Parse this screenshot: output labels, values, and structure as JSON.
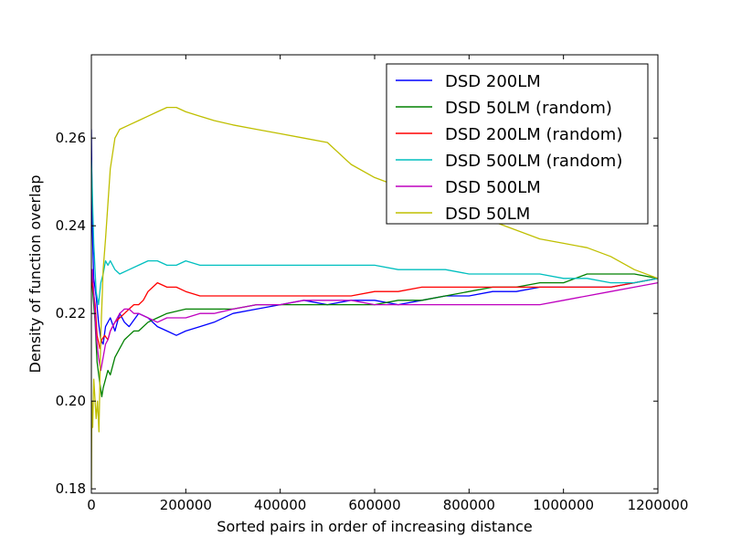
{
  "chart_data": {
    "type": "line",
    "title": "",
    "xlabel": "Sorted pairs in order of increasing distance",
    "ylabel": "Density of function overlap",
    "xlim": [
      0,
      1200000
    ],
    "ylim": [
      0.179,
      0.279
    ],
    "xticks": [
      0,
      200000,
      400000,
      600000,
      800000,
      1000000,
      1200000
    ],
    "xtick_labels": [
      "0",
      "200000",
      "400000",
      "600000",
      "800000",
      "1000000",
      "1200000"
    ],
    "yticks": [
      0.18,
      0.2,
      0.22,
      0.24,
      0.26
    ],
    "ytick_labels": [
      "0.18",
      "0.20",
      "0.22",
      "0.24",
      "0.26"
    ],
    "grid": false,
    "legend_position": "top-right",
    "series": [
      {
        "name": "DSD 200LM",
        "color": "#0000ff",
        "x": [
          0,
          2000,
          5000,
          10000,
          15000,
          20000,
          25000,
          30000,
          40000,
          50000,
          60000,
          70000,
          80000,
          100000,
          120000,
          140000,
          160000,
          180000,
          200000,
          230000,
          260000,
          300000,
          350000,
          400000,
          450000,
          500000,
          550000,
          600000,
          650000,
          700000,
          750000,
          800000,
          850000,
          900000,
          950000,
          1000000,
          1050000,
          1100000,
          1150000,
          1200000
        ],
        "y": [
          0.262,
          0.24,
          0.228,
          0.224,
          0.218,
          0.214,
          0.213,
          0.217,
          0.219,
          0.216,
          0.22,
          0.218,
          0.217,
          0.22,
          0.219,
          0.217,
          0.216,
          0.215,
          0.216,
          0.217,
          0.218,
          0.22,
          0.221,
          0.222,
          0.223,
          0.222,
          0.223,
          0.223,
          0.222,
          0.223,
          0.224,
          0.224,
          0.225,
          0.225,
          0.226,
          0.226,
          0.226,
          0.226,
          0.227,
          0.228
        ]
      },
      {
        "name": "DSD 50LM (random)",
        "color": "#008000",
        "x": [
          0,
          3000,
          8000,
          12000,
          18000,
          22000,
          25000,
          30000,
          35000,
          40000,
          50000,
          60000,
          70000,
          80000,
          90000,
          100000,
          120000,
          140000,
          160000,
          200000,
          250000,
          300000,
          350000,
          400000,
          450000,
          500000,
          550000,
          600000,
          650000,
          700000,
          750000,
          800000,
          850000,
          900000,
          950000,
          1000000,
          1050000,
          1100000,
          1150000,
          1200000
        ],
        "y": [
          0.23,
          0.225,
          0.218,
          0.209,
          0.204,
          0.201,
          0.203,
          0.205,
          0.207,
          0.206,
          0.21,
          0.212,
          0.214,
          0.215,
          0.216,
          0.216,
          0.218,
          0.219,
          0.22,
          0.221,
          0.221,
          0.221,
          0.222,
          0.222,
          0.222,
          0.222,
          0.222,
          0.222,
          0.223,
          0.223,
          0.224,
          0.225,
          0.226,
          0.226,
          0.227,
          0.227,
          0.229,
          0.229,
          0.229,
          0.228
        ]
      },
      {
        "name": "DSD 200LM (random)",
        "color": "#ff0000",
        "x": [
          0,
          3000,
          8000,
          12000,
          18000,
          22000,
          28000,
          35000,
          40000,
          50000,
          60000,
          70000,
          80000,
          90000,
          100000,
          110000,
          120000,
          130000,
          140000,
          160000,
          180000,
          200000,
          230000,
          260000,
          300000,
          350000,
          400000,
          450000,
          500000,
          550000,
          600000,
          650000,
          700000,
          800000,
          900000,
          1000000,
          1100000,
          1200000
        ],
        "y": [
          0.228,
          0.226,
          0.222,
          0.215,
          0.212,
          0.214,
          0.215,
          0.214,
          0.216,
          0.218,
          0.219,
          0.22,
          0.221,
          0.222,
          0.222,
          0.223,
          0.225,
          0.226,
          0.227,
          0.226,
          0.226,
          0.225,
          0.224,
          0.224,
          0.224,
          0.224,
          0.224,
          0.224,
          0.224,
          0.224,
          0.225,
          0.225,
          0.226,
          0.226,
          0.226,
          0.226,
          0.226,
          0.228
        ]
      },
      {
        "name": "DSD 500LM (random)",
        "color": "#00bfbf",
        "x": [
          0,
          2000,
          5000,
          10000,
          15000,
          20000,
          25000,
          30000,
          35000,
          40000,
          50000,
          60000,
          80000,
          100000,
          120000,
          140000,
          160000,
          180000,
          200000,
          230000,
          260000,
          300000,
          350000,
          400000,
          450000,
          500000,
          550000,
          600000,
          650000,
          700000,
          750000,
          800000,
          850000,
          900000,
          950000,
          1000000,
          1050000,
          1100000,
          1150000,
          1200000
        ],
        "y": [
          0.255,
          0.248,
          0.236,
          0.225,
          0.222,
          0.227,
          0.229,
          0.232,
          0.231,
          0.232,
          0.23,
          0.229,
          0.23,
          0.231,
          0.232,
          0.232,
          0.231,
          0.231,
          0.232,
          0.231,
          0.231,
          0.231,
          0.231,
          0.231,
          0.231,
          0.231,
          0.231,
          0.231,
          0.23,
          0.23,
          0.23,
          0.229,
          0.229,
          0.229,
          0.229,
          0.228,
          0.228,
          0.227,
          0.227,
          0.228
        ]
      },
      {
        "name": "DSD 500LM",
        "color": "#bf00bf",
        "x": [
          0,
          2000,
          5000,
          10000,
          15000,
          20000,
          25000,
          30000,
          35000,
          40000,
          50000,
          60000,
          70000,
          80000,
          90000,
          100000,
          120000,
          140000,
          160000,
          180000,
          200000,
          230000,
          260000,
          300000,
          350000,
          400000,
          450000,
          500000,
          550000,
          600000,
          650000,
          700000,
          750000,
          800000,
          850000,
          900000,
          950000,
          1000000,
          1050000,
          1100000,
          1150000,
          1200000
        ],
        "y": [
          0.227,
          0.23,
          0.225,
          0.215,
          0.21,
          0.207,
          0.21,
          0.213,
          0.214,
          0.216,
          0.218,
          0.22,
          0.221,
          0.221,
          0.22,
          0.22,
          0.219,
          0.218,
          0.219,
          0.219,
          0.219,
          0.22,
          0.22,
          0.221,
          0.222,
          0.222,
          0.223,
          0.223,
          0.223,
          0.222,
          0.222,
          0.222,
          0.222,
          0.222,
          0.222,
          0.222,
          0.222,
          0.223,
          0.224,
          0.225,
          0.226,
          0.227
        ]
      },
      {
        "name": "DSD 50LM",
        "color": "#bfbf00",
        "x": [
          0,
          1000,
          3000,
          5000,
          8000,
          10000,
          13000,
          16000,
          20000,
          25000,
          30000,
          40000,
          50000,
          60000,
          80000,
          100000,
          120000,
          140000,
          160000,
          180000,
          200000,
          230000,
          260000,
          300000,
          350000,
          400000,
          450000,
          500000,
          550000,
          600000,
          650000,
          700000,
          750000,
          800000,
          850000,
          900000,
          950000,
          1000000,
          1050000,
          1100000,
          1150000,
          1200000
        ],
        "y": [
          0.18,
          0.2,
          0.194,
          0.205,
          0.2,
          0.196,
          0.2,
          0.193,
          0.215,
          0.23,
          0.237,
          0.253,
          0.26,
          0.262,
          0.263,
          0.264,
          0.265,
          0.266,
          0.267,
          0.267,
          0.266,
          0.265,
          0.264,
          0.263,
          0.262,
          0.261,
          0.26,
          0.259,
          0.254,
          0.251,
          0.249,
          0.247,
          0.245,
          0.243,
          0.241,
          0.239,
          0.237,
          0.236,
          0.235,
          0.233,
          0.23,
          0.228
        ]
      }
    ]
  }
}
